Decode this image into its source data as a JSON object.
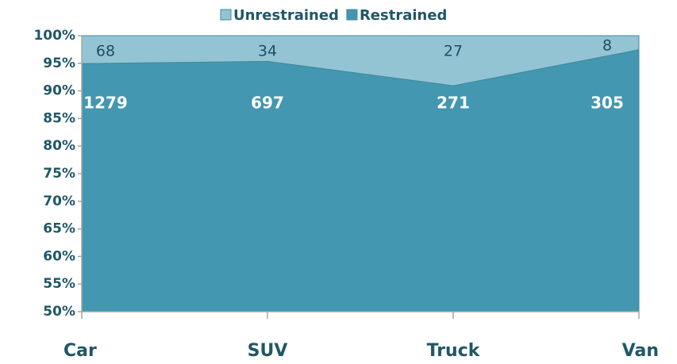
{
  "chart_data": {
    "type": "area",
    "stacking": "percent",
    "categories": [
      "Car",
      "SUV",
      "Truck",
      "Van"
    ],
    "series": [
      {
        "name": "Unrestrained",
        "color": "#93c4d4",
        "label_color": "#1f4e5f",
        "values": [
          68,
          34,
          27,
          8
        ]
      },
      {
        "name": "Restrained",
        "color": "#4397b0",
        "label_color": "#ffffff",
        "values": [
          1279,
          697,
          271,
          305
        ]
      }
    ],
    "ylim": [
      50,
      100
    ],
    "yticks": [
      {
        "value": 50,
        "label": "50%"
      },
      {
        "value": 55,
        "label": "55%"
      },
      {
        "value": 60,
        "label": "60%"
      },
      {
        "value": 65,
        "label": "65%"
      },
      {
        "value": 70,
        "label": "70%"
      },
      {
        "value": 75,
        "label": "75%"
      },
      {
        "value": 80,
        "label": "80%"
      },
      {
        "value": 85,
        "label": "85%"
      },
      {
        "value": 90,
        "label": "90%"
      },
      {
        "value": 95,
        "label": "95%"
      },
      {
        "value": 100,
        "label": "100%"
      }
    ],
    "legend": "top"
  }
}
